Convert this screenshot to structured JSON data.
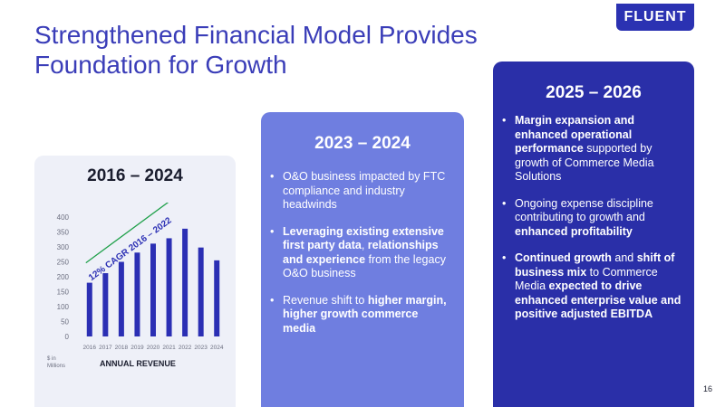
{
  "slide": {
    "title_line1": "Strengthened Financial Model Provides",
    "title_line2": "Foundation for Growth",
    "logo": "FLUENT",
    "page_number": "16"
  },
  "panel_left": {
    "heading": "2016 – 2024",
    "caption": "ANNUAL REVENUE",
    "unit": "$ in Millions"
  },
  "panel_mid": {
    "heading": "2023 – 2024",
    "bullets": [
      [
        {
          "t": "O&O business impacted by FTC compliance and industry headwinds",
          "b": false
        }
      ],
      [
        {
          "t": "Leveraging existing extensive first party data",
          "b": true
        },
        {
          "t": ", ",
          "b": false
        },
        {
          "t": "relationships and experience",
          "b": true
        },
        {
          "t": " from the legacy O&O business",
          "b": false
        }
      ],
      [
        {
          "t": "Revenue shift to ",
          "b": false
        },
        {
          "t": "higher margin, higher growth commerce media",
          "b": true
        }
      ]
    ]
  },
  "panel_right": {
    "heading": "2025 – 2026",
    "bullets": [
      [
        {
          "t": "Margin expansion and enhanced operational performance",
          "b": true
        },
        {
          "t": " supported by growth of Commerce Media Solutions",
          "b": false
        }
      ],
      [
        {
          "t": "Ongoing expense discipline contributing to growth and ",
          "b": false
        },
        {
          "t": "enhanced profitability",
          "b": true
        }
      ],
      [
        {
          "t": "Continued growth",
          "b": true
        },
        {
          "t": " and ",
          "b": false
        },
        {
          "t": "shift of business mix",
          "b": true
        },
        {
          "t": " to Commerce Media ",
          "b": false
        },
        {
          "t": "expected to drive enhanced enterprise value and positive adjusted EBITDA",
          "b": true
        }
      ]
    ]
  },
  "colors": {
    "bar": "#2b2fb4",
    "arrow": "#1fa04a",
    "title": "#3a3db8"
  },
  "chart_data": {
    "type": "bar",
    "title": "",
    "xlabel": "",
    "ylabel": "",
    "categories": [
      "2016",
      "2017",
      "2018",
      "2019",
      "2020",
      "2021",
      "2022",
      "2023",
      "2024"
    ],
    "values": [
      180,
      212,
      250,
      281,
      311,
      329,
      361,
      298,
      255
    ],
    "ylim": [
      0,
      400
    ],
    "yticks": [
      0,
      50,
      100,
      150,
      200,
      250,
      300,
      350,
      400
    ],
    "grid": false,
    "legend": "none",
    "annotation": "12% CAGR 2016 – 2022"
  }
}
